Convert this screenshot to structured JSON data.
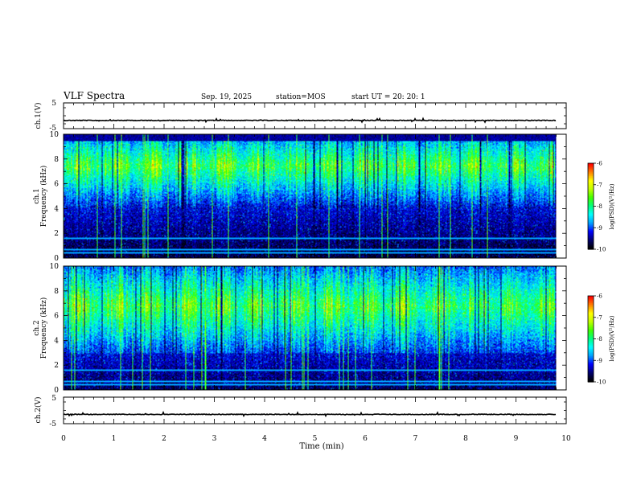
{
  "header": {
    "title": "VLF Spectra",
    "date": "Sep. 19, 2025",
    "station": "station=MOS",
    "start": "start  UT  =   20: 20: 1"
  },
  "chart_data": [
    {
      "type": "line",
      "name": "ch1-waveform",
      "ylabel": "ch.1(V)",
      "ylim": [
        -5,
        5
      ],
      "yticks": [
        5,
        -5
      ],
      "level": -1.8
    },
    {
      "type": "heatmap",
      "name": "ch1-spectrogram",
      "ylabel": "Frequency (kHz)",
      "ylabel_channel": "ch.1",
      "ylim": [
        0,
        10
      ],
      "yticks": [
        0,
        2,
        4,
        6,
        8,
        10
      ],
      "colorbar": {
        "label": "log(PSD)(V²/Hz)",
        "range": [
          -10,
          -6
        ],
        "ticks": [
          -6,
          -7,
          -8,
          -9,
          -10
        ]
      },
      "emission_band_khz": [
        4,
        9.5
      ],
      "peak_khz": 7.5
    },
    {
      "type": "heatmap",
      "name": "ch2-spectrogram",
      "ylabel": "Frequency (kHz)",
      "ylabel_channel": "ch.2",
      "ylim": [
        0,
        10
      ],
      "yticks": [
        0,
        2,
        4,
        6,
        8,
        10
      ],
      "colorbar": {
        "label": "log(PSD)(V²/Hz)",
        "range": [
          -10,
          -6
        ],
        "ticks": [
          -6,
          -7,
          -8,
          -9,
          -10
        ]
      },
      "emission_band_khz": [
        3,
        10
      ],
      "peak_khz": 6.8
    },
    {
      "type": "line",
      "name": "ch2-waveform",
      "ylabel": "ch.2(V)",
      "ylim": [
        -5,
        5
      ],
      "yticks": [
        5,
        -5
      ],
      "level": -1.5
    }
  ],
  "xaxis": {
    "label": "Time (min)",
    "range": [
      0,
      10
    ],
    "ticks": [
      0,
      1,
      2,
      3,
      4,
      5,
      6,
      7,
      8,
      9,
      10
    ],
    "data_end": 9.8
  },
  "colors": {
    "scale": [
      "#000000",
      "#000070",
      "#0000ff",
      "#00a0ff",
      "#00ffff",
      "#00ff80",
      "#40ff00",
      "#c0ff00",
      "#ffff00",
      "#ff8000",
      "#ff0000"
    ]
  }
}
